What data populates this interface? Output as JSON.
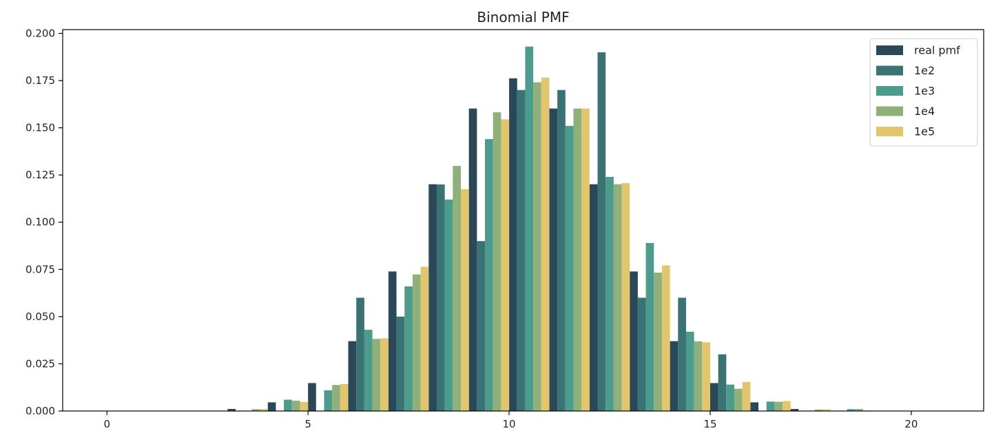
{
  "chart_data": {
    "type": "bar",
    "title": "Binomial PMF",
    "xlabel": "",
    "ylabel": "",
    "xlim": [
      -1.1,
      21.8
    ],
    "ylim": [
      0,
      0.202
    ],
    "x_ticks": [
      0,
      5,
      10,
      15,
      20
    ],
    "y_ticks": [
      0.0,
      0.025,
      0.05,
      0.075,
      0.1,
      0.125,
      0.15,
      0.175,
      0.2
    ],
    "y_tick_labels": [
      "0.000",
      "0.025",
      "0.050",
      "0.075",
      "0.100",
      "0.125",
      "0.150",
      "0.175",
      "0.200"
    ],
    "grid": false,
    "legend_position": "top-right",
    "x": [
      0,
      1,
      2,
      3,
      4,
      5,
      6,
      7,
      8,
      9,
      10,
      11,
      12,
      13,
      14,
      15,
      16,
      17,
      18,
      19,
      20
    ],
    "series": [
      {
        "name": "real pmf",
        "color": "#2a4858",
        "values": [
          0,
          0,
          0,
          0.0011,
          0.0046,
          0.0148,
          0.037,
          0.0739,
          0.1201,
          0.1602,
          0.1762,
          0.1602,
          0.1201,
          0.0739,
          0.037,
          0.0148,
          0.0046,
          0.0011,
          0.0002,
          0,
          0
        ]
      },
      {
        "name": "1e2",
        "color": "#3a7373",
        "values": [
          0,
          0,
          0,
          0,
          0,
          0,
          0.06,
          0.05,
          0.12,
          0.09,
          0.17,
          0.17,
          0.19,
          0.06,
          0.06,
          0.03,
          0,
          0,
          0,
          0,
          0
        ]
      },
      {
        "name": "1e3",
        "color": "#4c9c8d",
        "values": [
          0,
          0,
          0,
          0,
          0.006,
          0.011,
          0.043,
          0.066,
          0.112,
          0.144,
          0.193,
          0.151,
          0.124,
          0.089,
          0.042,
          0.014,
          0.005,
          0,
          0.001,
          0,
          0
        ]
      },
      {
        "name": "1e4",
        "color": "#90b07a",
        "values": [
          0,
          0,
          0,
          0.001,
          0.0055,
          0.0138,
          0.0382,
          0.0723,
          0.1298,
          0.1582,
          0.1741,
          0.1602,
          0.1201,
          0.0733,
          0.0369,
          0.0118,
          0.0049,
          0.0008,
          0.0011,
          0,
          0
        ]
      },
      {
        "name": "1e5",
        "color": "#e2c66d",
        "values": [
          0,
          0,
          0,
          0.0011,
          0.0048,
          0.0143,
          0.0385,
          0.0764,
          0.1175,
          0.1545,
          0.1766,
          0.1602,
          0.1207,
          0.0771,
          0.0364,
          0.0154,
          0.0053,
          0.0009,
          0.0003,
          0,
          0
        ]
      }
    ]
  }
}
